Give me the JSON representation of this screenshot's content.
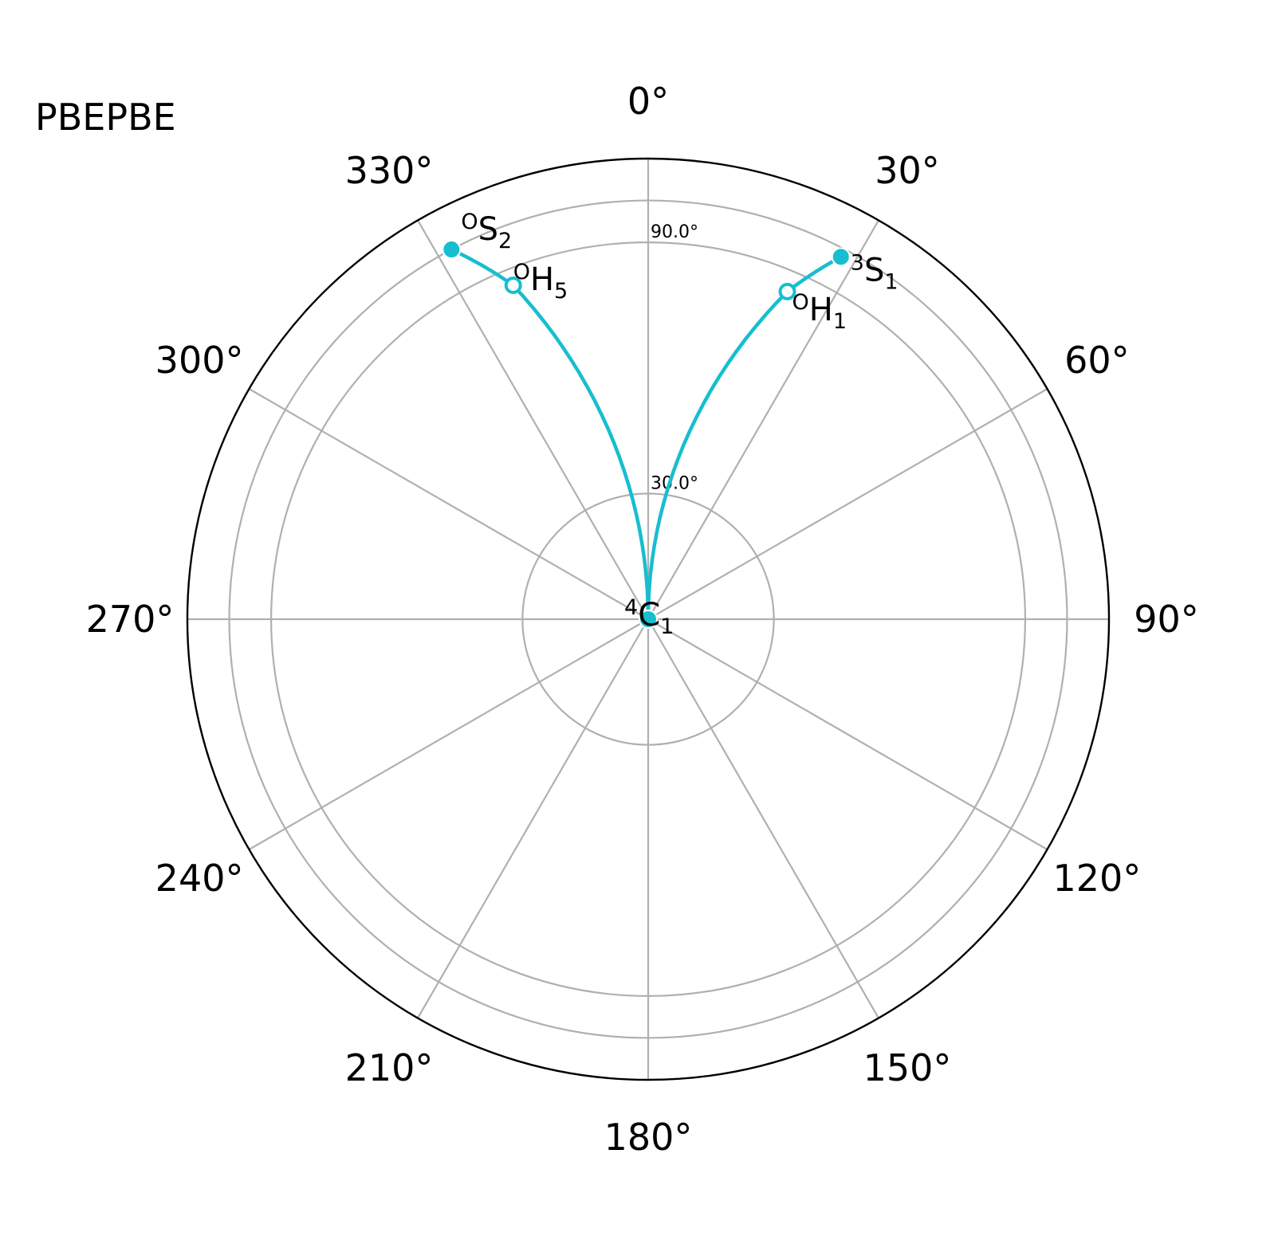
{
  "chart_data": {
    "type": "polar",
    "title": "PBEPBE",
    "theta_direction": "clockwise",
    "theta_zero": "top",
    "theta_ticks": [
      "0°",
      "30°",
      "60°",
      "90°",
      "120°",
      "150°",
      "180°",
      "210°",
      "240°",
      "270°",
      "300°",
      "330°"
    ],
    "theta_tick_values": [
      0,
      30,
      60,
      90,
      120,
      150,
      180,
      210,
      240,
      270,
      300,
      330
    ],
    "r_ticks": [
      "30.0°",
      "90.0°"
    ],
    "r_tick_values": [
      30,
      90
    ],
    "rlim": [
      0,
      110
    ],
    "grid": true,
    "color": "#17becf",
    "points": [
      {
        "name": "C1",
        "sup": "4",
        "main": "C",
        "sub": "1",
        "theta": 0,
        "r": 0,
        "marker": "filled"
      },
      {
        "name": "S1",
        "sup": "3",
        "main": "S",
        "sub": "1",
        "theta": 28,
        "r": 98,
        "marker": "filled"
      },
      {
        "name": "H1",
        "sup": "O",
        "main": "H",
        "sub": "1",
        "theta": 23,
        "r": 85,
        "marker": "hollow"
      },
      {
        "name": "S2",
        "sup": "O",
        "main": "S",
        "sub": "2",
        "theta": 332,
        "r": 100,
        "marker": "filled"
      },
      {
        "name": "H5",
        "sup": "O",
        "main": "H",
        "sub": "5",
        "theta": 338,
        "r": 86,
        "marker": "hollow"
      }
    ],
    "paths": [
      [
        "C1",
        "H1",
        "S1"
      ],
      [
        "C1",
        "H5",
        "S2"
      ]
    ]
  }
}
